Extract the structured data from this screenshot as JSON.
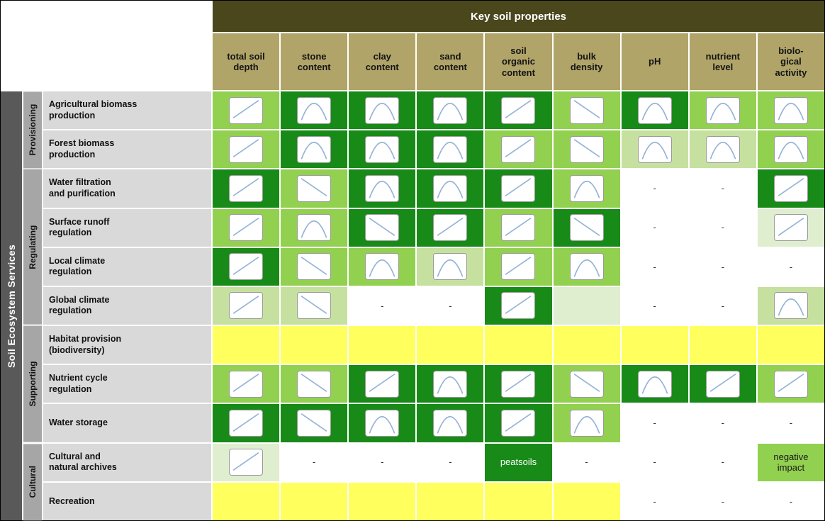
{
  "banner": "Key soil properties",
  "left_axis": "Soil Ecosystem Services",
  "dash_symbol": "-",
  "colors": {
    "banner_bg": "#4a471d",
    "header_bg": "#b0a468",
    "ses_bg": "#595959",
    "category_bg": "#a6a6a6",
    "rowlabel_bg": "#d9d9d9",
    "curve_stroke": "#95b3d7",
    "cell_levels": {
      "dark": "#188a18",
      "medium": "#92d050",
      "light": "#c6e0a0",
      "pale": "#dfeecf",
      "yellow": "#ffff5e",
      "white": "#ffffff"
    }
  },
  "columns": [
    "total soil\ndepth",
    "stone\ncontent",
    "clay\ncontent",
    "sand\ncontent",
    "soil\norganic\ncontent",
    "bulk\ndensity",
    "pH",
    "nutrient\nlevel",
    "biolo-\ngical\nactivity"
  ],
  "categories": [
    {
      "label": "Provisioning",
      "span": 2
    },
    {
      "label": "Regulating",
      "span": 4
    },
    {
      "label": "Supporting",
      "span": 3
    },
    {
      "label": "Cultural",
      "span": 2
    }
  ],
  "rows": [
    {
      "label": "Agricultural biomass\nproduction",
      "cells": [
        {
          "t": "curve",
          "c": "inc",
          "bg": "medium"
        },
        {
          "t": "curve",
          "c": "opt",
          "bg": "dark"
        },
        {
          "t": "curve",
          "c": "opt",
          "bg": "dark"
        },
        {
          "t": "curve",
          "c": "opt",
          "bg": "dark"
        },
        {
          "t": "curve",
          "c": "inc",
          "bg": "dark"
        },
        {
          "t": "curve",
          "c": "dec",
          "bg": "medium"
        },
        {
          "t": "curve",
          "c": "opt",
          "bg": "dark"
        },
        {
          "t": "curve",
          "c": "opt",
          "bg": "medium"
        },
        {
          "t": "curve",
          "c": "opt",
          "bg": "medium"
        }
      ]
    },
    {
      "label": "Forest biomass\nproduction",
      "cells": [
        {
          "t": "curve",
          "c": "inc",
          "bg": "medium"
        },
        {
          "t": "curve",
          "c": "opt",
          "bg": "dark"
        },
        {
          "t": "curve",
          "c": "opt",
          "bg": "dark"
        },
        {
          "t": "curve",
          "c": "opt",
          "bg": "dark"
        },
        {
          "t": "curve",
          "c": "inc",
          "bg": "medium"
        },
        {
          "t": "curve",
          "c": "dec",
          "bg": "medium"
        },
        {
          "t": "curve",
          "c": "opt",
          "bg": "light"
        },
        {
          "t": "curve",
          "c": "opt",
          "bg": "light"
        },
        {
          "t": "curve",
          "c": "opt",
          "bg": "medium"
        }
      ]
    },
    {
      "label": "Water filtration\nand purification",
      "cells": [
        {
          "t": "curve",
          "c": "inc",
          "bg": "dark"
        },
        {
          "t": "curve",
          "c": "dec",
          "bg": "medium"
        },
        {
          "t": "curve",
          "c": "opt",
          "bg": "dark"
        },
        {
          "t": "curve",
          "c": "opt",
          "bg": "dark"
        },
        {
          "t": "curve",
          "c": "inc",
          "bg": "dark"
        },
        {
          "t": "curve",
          "c": "opt",
          "bg": "medium"
        },
        {
          "t": "dash"
        },
        {
          "t": "dash"
        },
        {
          "t": "curve",
          "c": "inc",
          "bg": "dark"
        }
      ]
    },
    {
      "label": "Surface runoff\nregulation",
      "cells": [
        {
          "t": "curve",
          "c": "inc",
          "bg": "medium"
        },
        {
          "t": "curve",
          "c": "opt",
          "bg": "medium"
        },
        {
          "t": "curve",
          "c": "dec",
          "bg": "dark"
        },
        {
          "t": "curve",
          "c": "inc",
          "bg": "dark"
        },
        {
          "t": "curve",
          "c": "inc",
          "bg": "medium"
        },
        {
          "t": "curve",
          "c": "dec",
          "bg": "dark"
        },
        {
          "t": "dash"
        },
        {
          "t": "dash"
        },
        {
          "t": "curve",
          "c": "inc",
          "bg": "pale"
        }
      ]
    },
    {
      "label": "Local climate\nregulation",
      "cells": [
        {
          "t": "curve",
          "c": "inc",
          "bg": "dark"
        },
        {
          "t": "curve",
          "c": "dec",
          "bg": "medium"
        },
        {
          "t": "curve",
          "c": "opt",
          "bg": "medium"
        },
        {
          "t": "curve",
          "c": "opt",
          "bg": "light"
        },
        {
          "t": "curve",
          "c": "inc",
          "bg": "medium"
        },
        {
          "t": "curve",
          "c": "opt",
          "bg": "medium"
        },
        {
          "t": "dash"
        },
        {
          "t": "dash"
        },
        {
          "t": "dash"
        }
      ]
    },
    {
      "label": "Global climate\nregulation",
      "cells": [
        {
          "t": "curve",
          "c": "inc",
          "bg": "light"
        },
        {
          "t": "curve",
          "c": "dec",
          "bg": "light"
        },
        {
          "t": "dash"
        },
        {
          "t": "dash"
        },
        {
          "t": "curve",
          "c": "inc",
          "bg": "dark"
        },
        {
          "t": "empty",
          "bg": "pale"
        },
        {
          "t": "dash"
        },
        {
          "t": "dash"
        },
        {
          "t": "curve",
          "c": "opt",
          "bg": "light"
        }
      ]
    },
    {
      "label": "Habitat provision\n(biodiversity)",
      "cells": [
        {
          "t": "empty",
          "bg": "yellow"
        },
        {
          "t": "empty",
          "bg": "yellow"
        },
        {
          "t": "empty",
          "bg": "yellow"
        },
        {
          "t": "empty",
          "bg": "yellow"
        },
        {
          "t": "empty",
          "bg": "yellow"
        },
        {
          "t": "empty",
          "bg": "yellow"
        },
        {
          "t": "empty",
          "bg": "yellow"
        },
        {
          "t": "empty",
          "bg": "yellow"
        },
        {
          "t": "empty",
          "bg": "yellow"
        }
      ]
    },
    {
      "label": "Nutrient cycle\nregulation",
      "cells": [
        {
          "t": "curve",
          "c": "inc",
          "bg": "medium"
        },
        {
          "t": "curve",
          "c": "dec",
          "bg": "medium"
        },
        {
          "t": "curve",
          "c": "inc",
          "bg": "dark"
        },
        {
          "t": "curve",
          "c": "opt",
          "bg": "dark"
        },
        {
          "t": "curve",
          "c": "inc",
          "bg": "dark"
        },
        {
          "t": "curve",
          "c": "dec",
          "bg": "medium"
        },
        {
          "t": "curve",
          "c": "opt",
          "bg": "dark"
        },
        {
          "t": "curve",
          "c": "inc",
          "bg": "dark"
        },
        {
          "t": "curve",
          "c": "inc",
          "bg": "medium"
        }
      ]
    },
    {
      "label": "Water storage",
      "cells": [
        {
          "t": "curve",
          "c": "inc",
          "bg": "dark"
        },
        {
          "t": "curve",
          "c": "dec",
          "bg": "dark"
        },
        {
          "t": "curve",
          "c": "opt",
          "bg": "dark"
        },
        {
          "t": "curve",
          "c": "opt",
          "bg": "dark"
        },
        {
          "t": "curve",
          "c": "inc",
          "bg": "dark"
        },
        {
          "t": "curve",
          "c": "opt",
          "bg": "medium"
        },
        {
          "t": "dash"
        },
        {
          "t": "dash"
        },
        {
          "t": "dash"
        }
      ]
    },
    {
      "label": "Cultural and\nnatural archives",
      "cells": [
        {
          "t": "curve",
          "c": "inc",
          "bg": "pale"
        },
        {
          "t": "dash"
        },
        {
          "t": "dash"
        },
        {
          "t": "dash"
        },
        {
          "t": "text",
          "text": "peatsoils",
          "bg": "dark",
          "fg": "#ffffff"
        },
        {
          "t": "dash"
        },
        {
          "t": "dash"
        },
        {
          "t": "dash"
        },
        {
          "t": "text",
          "text": "negative\nimpact",
          "bg": "medium",
          "fg": "#1a1a1a"
        }
      ]
    },
    {
      "label": "Recreation",
      "cells": [
        {
          "t": "empty",
          "bg": "yellow"
        },
        {
          "t": "empty",
          "bg": "yellow"
        },
        {
          "t": "empty",
          "bg": "yellow"
        },
        {
          "t": "empty",
          "bg": "yellow"
        },
        {
          "t": "empty",
          "bg": "yellow"
        },
        {
          "t": "empty",
          "bg": "yellow"
        },
        {
          "t": "dash"
        },
        {
          "t": "dash"
        },
        {
          "t": "dash"
        }
      ]
    }
  ]
}
